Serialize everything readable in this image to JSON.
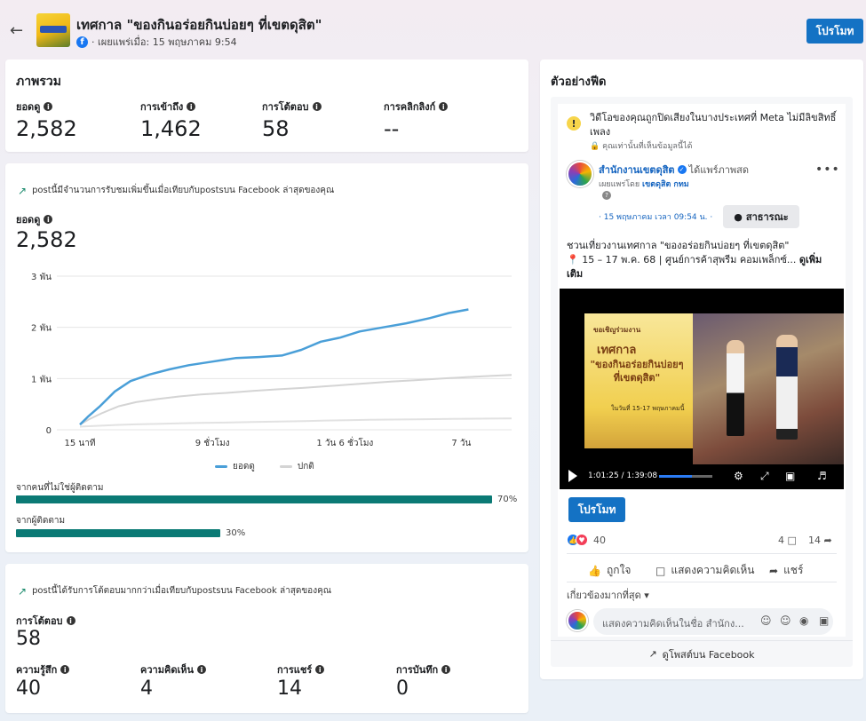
{
  "header": {
    "back_icon": "arrow-left-icon",
    "title": "เทศกาล \"ของกินอร่อยกินบ่อยๆ ที่เขตดุสิต\"",
    "published": "· เผยแพร่เมื่อ: 15 พฤษภาคม 9:54",
    "promote_label": "โปรโมท"
  },
  "overview": {
    "title": "ภาพรวม",
    "stats": [
      {
        "label": "ยอดดู",
        "value": "2,582"
      },
      {
        "label": "การเข้าถึง",
        "value": "1,462"
      },
      {
        "label": "การโต้ตอบ",
        "value": "58"
      },
      {
        "label": "การคลิกลิงก์",
        "value": "--"
      }
    ]
  },
  "reach": {
    "trend_text": "postนี้มีจำนวนการรับชมเพิ่มขึ้นเมื่อเทียบกับpostsบน Facebook ล่าสุดของคุณ",
    "views_label": "ยอดดู",
    "views_value": "2,582",
    "non_followers_label": "จากคนที่ไม่ใช่ผู้ติดตาม",
    "non_followers_pct": "70%",
    "non_followers_fraction": 0.7,
    "followers_label": "จากผู้ติดตาม",
    "followers_pct": "30%",
    "followers_fraction": 0.3
  },
  "chart_data": {
    "type": "line",
    "x_ticks": [
      "15 นาที",
      "9 ชั่วโมง",
      "1 วัน 6 ชั่วโมง",
      "7 วัน"
    ],
    "y_ticks": [
      "0",
      "1 พัน",
      "2 พัน",
      "3 พัน"
    ],
    "ylim": [
      0,
      3000
    ],
    "x": [
      0,
      0.02,
      0.05,
      0.09,
      0.13,
      0.18,
      0.23,
      0.28,
      0.34,
      0.4,
      0.46,
      0.52,
      0.57,
      0.62,
      0.67,
      0.72,
      0.78,
      0.84,
      0.9,
      0.95,
      1.0
    ],
    "series": [
      {
        "name": "ยอดดู",
        "color": "#4a9fd8",
        "values": [
          100,
          250,
          450,
          750,
          950,
          1080,
          1180,
          1260,
          1330,
          1400,
          1420,
          1450,
          1560,
          1720,
          1800,
          1920,
          2000,
          2080,
          2180,
          2280,
          2350
        ]
      },
      {
        "name": "ปกติ",
        "color": "#d4d4d4",
        "values": [
          100,
          200,
          320,
          460,
          540,
          600,
          650,
          690,
          720,
          760,
          790,
          820,
          850,
          880,
          910,
          940,
          970,
          1000,
          1030,
          1050,
          1070
        ]
      },
      {
        "name": "",
        "color": "#e2e2e2",
        "values": [
          60,
          70,
          80,
          95,
          105,
          115,
          125,
          135,
          140,
          150,
          160,
          170,
          180,
          188,
          195,
          200,
          205,
          210,
          215,
          218,
          220
        ]
      }
    ]
  },
  "engagement": {
    "trend_text": "postนี้ได้รับการโต้ตอบมากกว่าเมื่อเทียบกับpostsบน Facebook ล่าสุดของคุณ",
    "total_label": "การโต้ตอบ",
    "total_value": "58",
    "stats": [
      {
        "label": "ความรู้สึก",
        "value": "40"
      },
      {
        "label": "ความคิดเห็น",
        "value": "4"
      },
      {
        "label": "การแชร์",
        "value": "14"
      },
      {
        "label": "การบันทึก",
        "value": "0"
      }
    ]
  },
  "preview": {
    "title": "ตัวอย่างฟีด",
    "warning": "วิดีโอของคุณถูกปิดเสียงในบางประเทศที่ Meta ไม่มีลิขสิทธิ์เพลง",
    "warning_sub": "🔒 คุณเท่านั้นที่เห็นข้อมูลนี้ได้",
    "author": "สำนักงานเขตดุสิต",
    "author_suffix": "ได้แพร์ภาพสด",
    "published_by_prefix": "เผยแพร่โดย",
    "published_by_name": "เขตดุสิต กทม",
    "date": "· 15 พฤษภาคม เวลา 09:54 น. ·",
    "audience": "สาธารณะ",
    "caption_line1": "ชวนเที่ยวงานเทศกาล \"ของอร่อยกินบ่อยๆ ที่เขตดุสิต\"",
    "caption_line2": "📍 15 – 17 พ.ค. 68 | ศูนย์การค้าสุพรีม คอมเพล็กซ์...",
    "see_more": "ดูเพิ่มเติม",
    "video": {
      "banner_top": "ขอเชิญร่วมงาน",
      "banner_main": "เทศกาล",
      "banner_title": "\"ของกินอร่อยกินบ่อยๆ ที่เขตดุสิต\"",
      "banner_date": "ในวันที่ 15-17 พฤษภาคมนี้",
      "time": "1:01:25 / 1:39:08",
      "progress_fraction": 0.62
    },
    "promote_label": "โปรโมท",
    "reactions": "40",
    "comments": "4",
    "shares": "14",
    "like_label": "ถูกใจ",
    "comment_label": "แสดงความคิดเห็น",
    "share_label": "แชร์",
    "relevant_label": "เกี่ยวข้องมากที่สุด",
    "comment_placeholder": "แสดงความคิดเห็นในชื่อ สำนักง...",
    "view_on_fb": "ดูโพสต์บน Facebook"
  }
}
